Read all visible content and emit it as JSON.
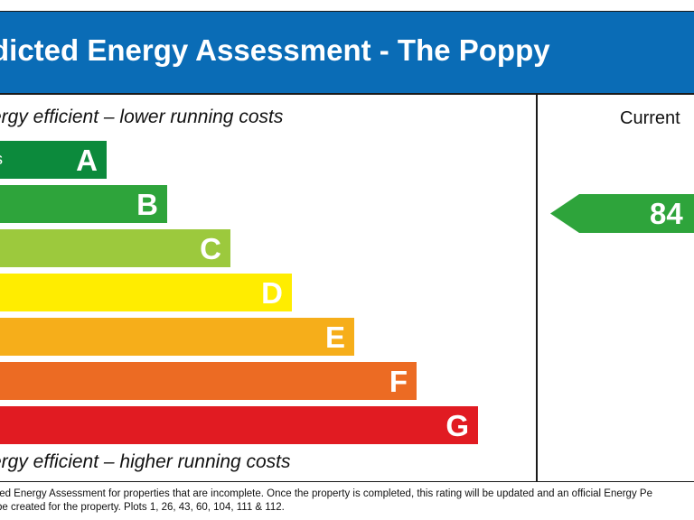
{
  "header": {
    "title": "dicted Energy Assessment - The Poppy"
  },
  "notes": {
    "top": "ergy efficient – lower running costs",
    "bottom": "ergy efficient – higher running costs"
  },
  "current_label": "Current",
  "colors": {
    "header": "#0a6cb6",
    "A": "#0c8a3c",
    "B": "#2ea43b",
    "C": "#9cc93d",
    "D": "#ffed00",
    "E": "#f6ae1a",
    "F": "#ec6b23",
    "G": "#e11b22"
  },
  "chart_data": {
    "type": "bar",
    "title": "dicted Energy Assessment - The Poppy",
    "categories": [
      "A",
      "B",
      "C",
      "D",
      "E",
      "F",
      "G"
    ],
    "bands": [
      {
        "letter": "A",
        "range": "s"
      },
      {
        "letter": "B",
        "range": ""
      },
      {
        "letter": "C",
        "range": ""
      },
      {
        "letter": "D",
        "range": ""
      },
      {
        "letter": "E",
        "range": ""
      },
      {
        "letter": "F",
        "range": ""
      },
      {
        "letter": "G",
        "range": ""
      }
    ],
    "current": {
      "value": "84",
      "band": "B"
    }
  },
  "footer": {
    "line1": "ted Energy Assessment for properties that are incomplete. Once the property is completed, this rating will be updated and an official Energy Pe",
    "line2": "be created for the property. Plots 1, 26, 43, 60, 104, 111 & 112."
  }
}
